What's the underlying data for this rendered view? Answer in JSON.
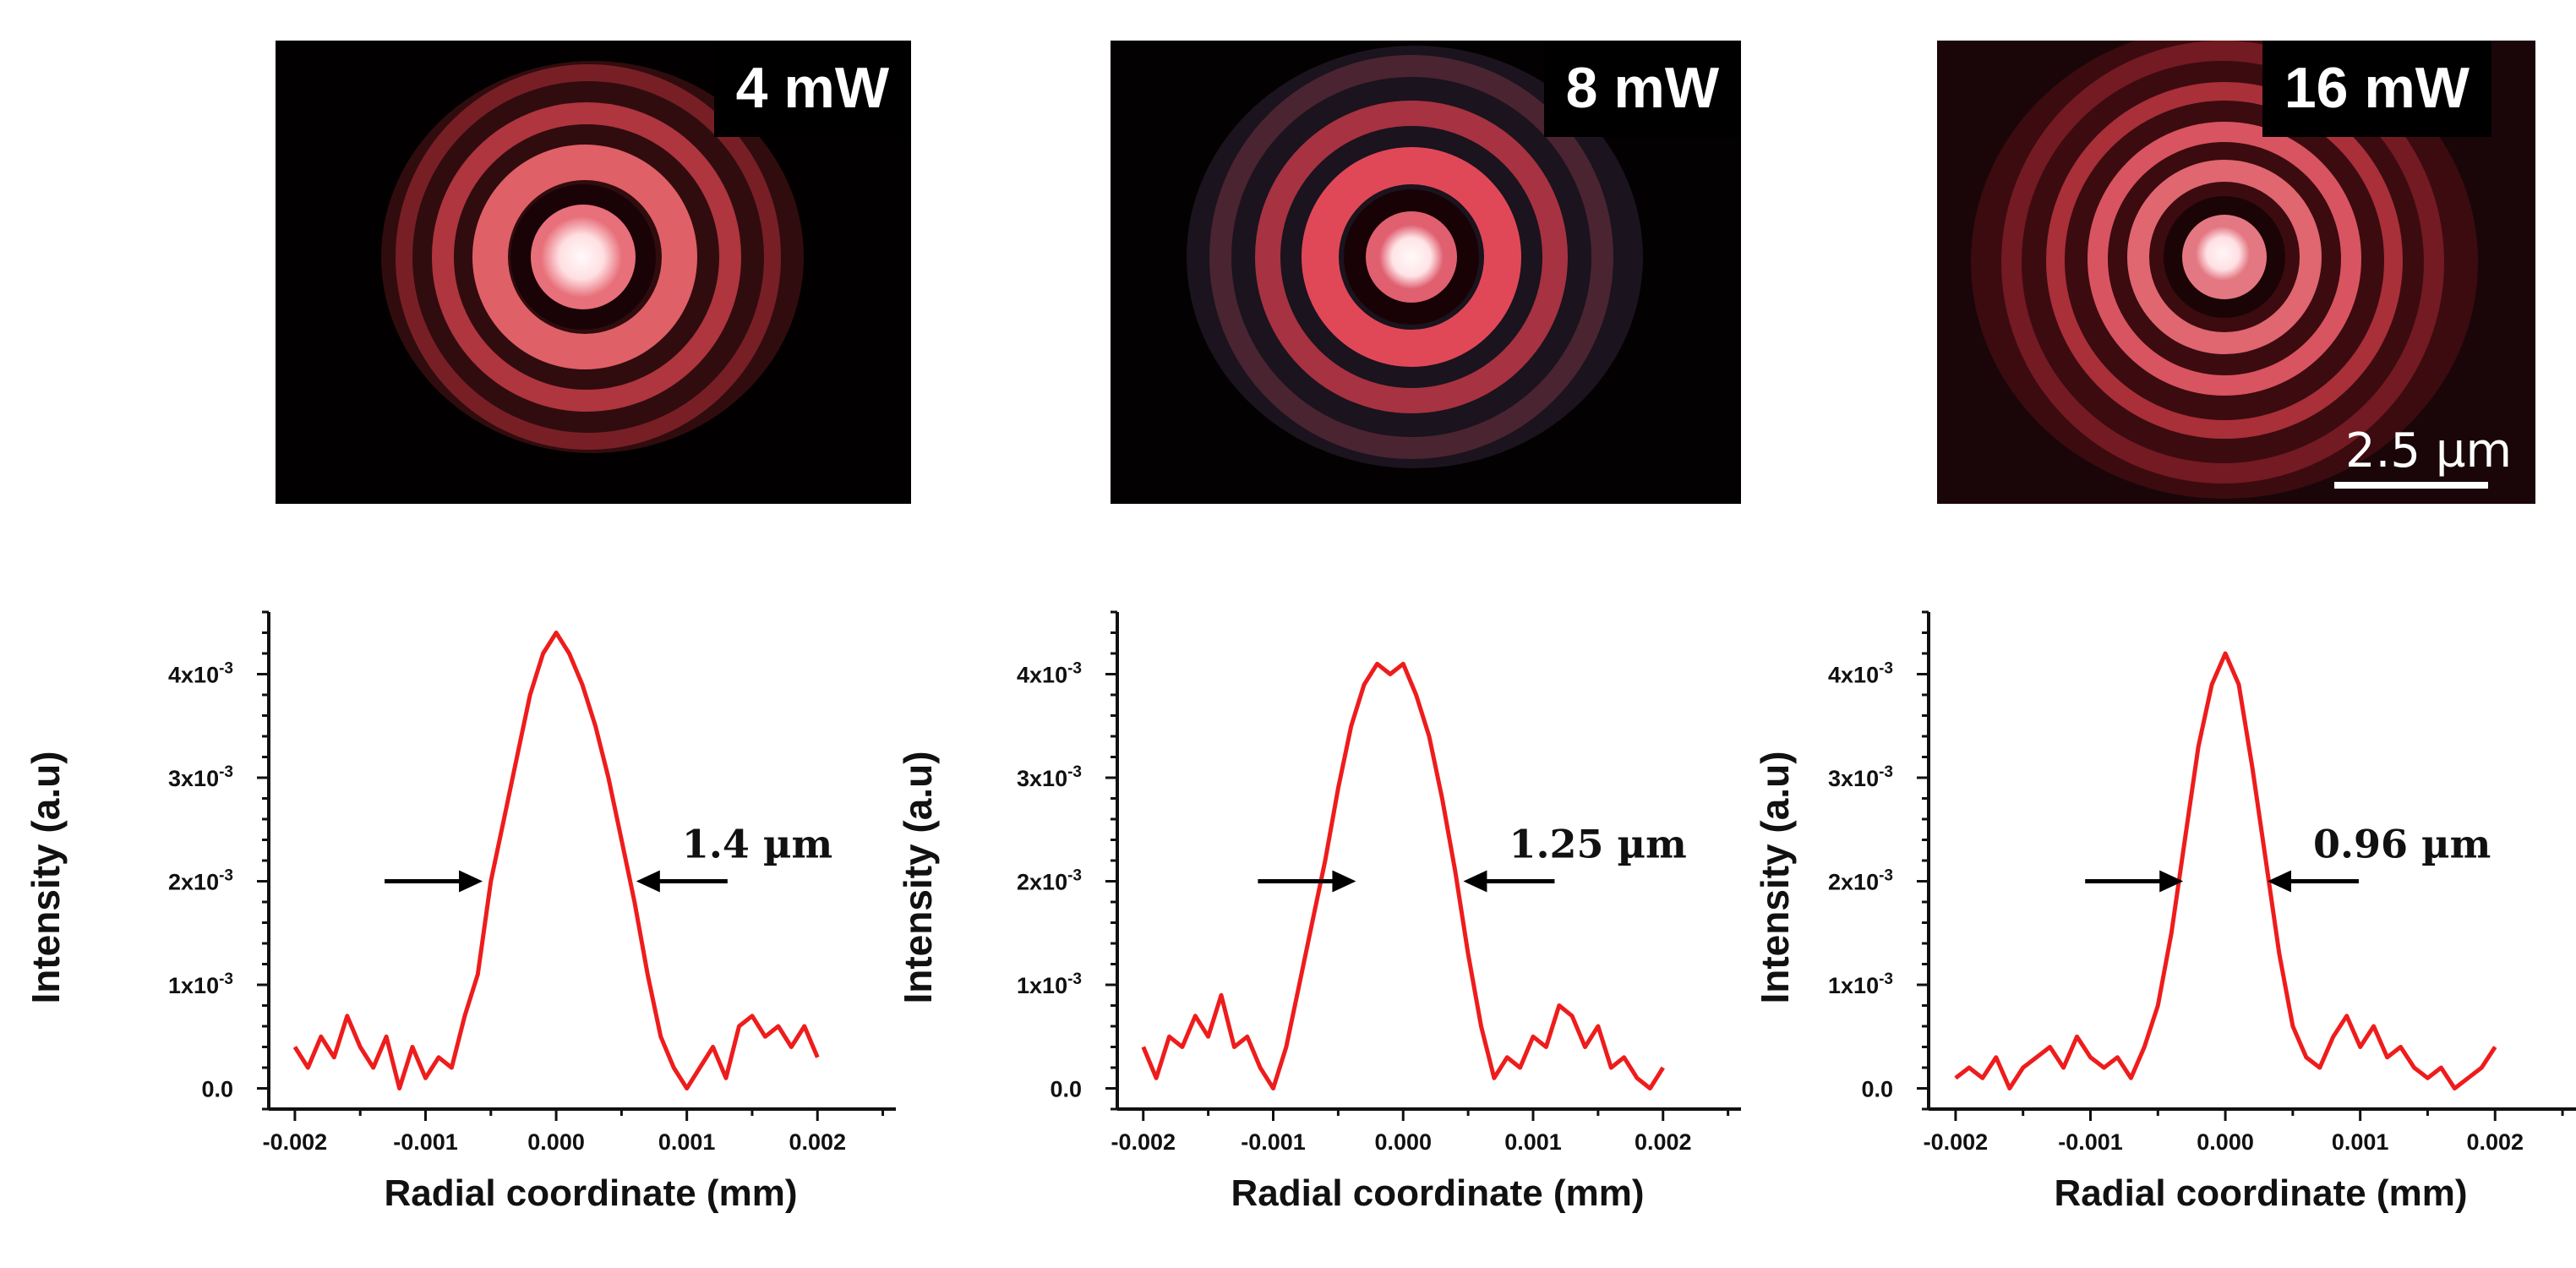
{
  "images": [
    {
      "power_label": "4 mW",
      "scale_bar": ""
    },
    {
      "power_label": "8 mW",
      "scale_bar": ""
    },
    {
      "power_label": "16 mW",
      "scale_bar": "2.5 µm"
    }
  ],
  "colors": {
    "curve": "#ee1c1c",
    "axis": "#111111",
    "arrow": "#000000",
    "ring": "#e0505c",
    "core": "#ffeef0"
  },
  "chart_data": [
    {
      "type": "line",
      "title": "",
      "xlabel": "Radial coordinate (mm)",
      "ylabel": "Intensity (a.u)",
      "xlim": [
        -0.0022,
        0.0026
      ],
      "ylim": [
        -0.0002,
        0.0046
      ],
      "xticks": [
        -0.002,
        -0.001,
        0.0,
        0.001,
        0.002
      ],
      "xtick_labels": [
        "-0.002",
        "-0.001",
        "0.000",
        "0.001",
        "0.002"
      ],
      "yticks": [
        0.0,
        0.001,
        0.002,
        0.003,
        0.004
      ],
      "ytick_labels": [
        "0.0",
        "1x10-3",
        "2x10-3",
        "3x10-3",
        "4x10-3"
      ],
      "fwhm_label": "1.4 µm",
      "fwhm_arrows": {
        "left_x": -0.00055,
        "right_x": 0.0006,
        "y": 0.002
      },
      "series": [
        {
          "name": "4 mW",
          "x": [
            -0.002,
            -0.0019,
            -0.0018,
            -0.0017,
            -0.0016,
            -0.0015,
            -0.0014,
            -0.0013,
            -0.0012,
            -0.0011,
            -0.001,
            -0.0009,
            -0.0008,
            -0.0007,
            -0.0006,
            -0.0005,
            -0.0004,
            -0.0003,
            -0.0002,
            -0.0001,
            0.0,
            0.0001,
            0.0002,
            0.0003,
            0.0004,
            0.0005,
            0.0006,
            0.0007,
            0.0008,
            0.0009,
            0.001,
            0.0011,
            0.0012,
            0.0013,
            0.0014,
            0.0015,
            0.0016,
            0.0017,
            0.0018,
            0.0019,
            0.002
          ],
          "y": [
            0.0004,
            0.0002,
            0.0005,
            0.0003,
            0.0007,
            0.0004,
            0.0002,
            0.0005,
            0.0,
            0.0004,
            0.0001,
            0.0003,
            0.0002,
            0.0007,
            0.0011,
            0.002,
            0.0026,
            0.0032,
            0.0038,
            0.0042,
            0.0044,
            0.0042,
            0.0039,
            0.0035,
            0.003,
            0.0024,
            0.0018,
            0.0011,
            0.0005,
            0.0002,
            0.0,
            0.0002,
            0.0004,
            0.0001,
            0.0006,
            0.0007,
            0.0005,
            0.0006,
            0.0004,
            0.0006,
            0.0003
          ]
        }
      ]
    },
    {
      "type": "line",
      "title": "",
      "xlabel": "Radial coordinate (mm)",
      "ylabel": "Intensity (a.u)",
      "xlim": [
        -0.0022,
        0.0026
      ],
      "ylim": [
        -0.0002,
        0.0046
      ],
      "xticks": [
        -0.002,
        -0.001,
        0.0,
        0.001,
        0.002
      ],
      "xtick_labels": [
        "-0.002",
        "-0.001",
        "0.000",
        "0.001",
        "0.002"
      ],
      "yticks": [
        0.0,
        0.001,
        0.002,
        0.003,
        0.004
      ],
      "ytick_labels": [
        "0.0",
        "1x10-3",
        "2x10-3",
        "3x10-3",
        "4x10-3"
      ],
      "fwhm_label": "1.25 µm",
      "fwhm_arrows": {
        "left_x": -0.00035,
        "right_x": 0.00045,
        "y": 0.002
      },
      "series": [
        {
          "name": "8 mW",
          "x": [
            -0.002,
            -0.0019,
            -0.0018,
            -0.0017,
            -0.0016,
            -0.0015,
            -0.0014,
            -0.0013,
            -0.0012,
            -0.0011,
            -0.001,
            -0.0009,
            -0.0008,
            -0.0007,
            -0.0006,
            -0.0005,
            -0.0004,
            -0.0003,
            -0.0002,
            -0.0001,
            0.0,
            0.0001,
            0.0002,
            0.0003,
            0.0004,
            0.0005,
            0.0006,
            0.0007,
            0.0008,
            0.0009,
            0.001,
            0.0011,
            0.0012,
            0.0013,
            0.0014,
            0.0015,
            0.0016,
            0.0017,
            0.0018,
            0.0019,
            0.002
          ],
          "y": [
            0.0004,
            0.0001,
            0.0005,
            0.0004,
            0.0007,
            0.0005,
            0.0009,
            0.0004,
            0.0005,
            0.0002,
            0.0,
            0.0004,
            0.001,
            0.0016,
            0.0022,
            0.0029,
            0.0035,
            0.0039,
            0.0041,
            0.004,
            0.0041,
            0.0038,
            0.0034,
            0.0028,
            0.0021,
            0.0013,
            0.0006,
            0.0001,
            0.0003,
            0.0002,
            0.0005,
            0.0004,
            0.0008,
            0.0007,
            0.0004,
            0.0006,
            0.0002,
            0.0003,
            0.0001,
            0.0,
            0.0002
          ]
        }
      ]
    },
    {
      "type": "line",
      "title": "",
      "xlabel": "Radial coordinate (mm)",
      "ylabel": "Intensity (a.u)",
      "xlim": [
        -0.0022,
        0.0026
      ],
      "ylim": [
        -0.0002,
        0.0046
      ],
      "xticks": [
        -0.002,
        -0.001,
        0.0,
        0.001,
        0.002
      ],
      "xtick_labels": [
        "-0.002",
        "-0.001",
        "0.000",
        "0.001",
        "0.002"
      ],
      "yticks": [
        0.0,
        0.001,
        0.002,
        0.003,
        0.004
      ],
      "ytick_labels": [
        "0.0",
        "1x10-3",
        "2x10-3",
        "3x10-3",
        "4x10-3"
      ],
      "fwhm_label": "0.96 µm",
      "fwhm_arrows": {
        "left_x": -0.0003,
        "right_x": 0.0003,
        "y": 0.002
      },
      "series": [
        {
          "name": "16 mW",
          "x": [
            -0.002,
            -0.0019,
            -0.0018,
            -0.0017,
            -0.0016,
            -0.0015,
            -0.0014,
            -0.0013,
            -0.0012,
            -0.0011,
            -0.001,
            -0.0009,
            -0.0008,
            -0.0007,
            -0.0006,
            -0.0005,
            -0.0004,
            -0.0003,
            -0.0002,
            -0.0001,
            0.0,
            0.0001,
            0.0002,
            0.0003,
            0.0004,
            0.0005,
            0.0006,
            0.0007,
            0.0008,
            0.0009,
            0.001,
            0.0011,
            0.0012,
            0.0013,
            0.0014,
            0.0015,
            0.0016,
            0.0017,
            0.0018,
            0.0019,
            0.002
          ],
          "y": [
            0.0001,
            0.0002,
            0.0001,
            0.0003,
            0.0,
            0.0002,
            0.0003,
            0.0004,
            0.0002,
            0.0005,
            0.0003,
            0.0002,
            0.0003,
            0.0001,
            0.0004,
            0.0008,
            0.0015,
            0.0024,
            0.0033,
            0.0039,
            0.0042,
            0.0039,
            0.0031,
            0.0022,
            0.0013,
            0.0006,
            0.0003,
            0.0002,
            0.0005,
            0.0007,
            0.0004,
            0.0006,
            0.0003,
            0.0004,
            0.0002,
            0.0001,
            0.0002,
            0.0,
            0.0001,
            0.0002,
            0.0004
          ]
        }
      ]
    }
  ]
}
